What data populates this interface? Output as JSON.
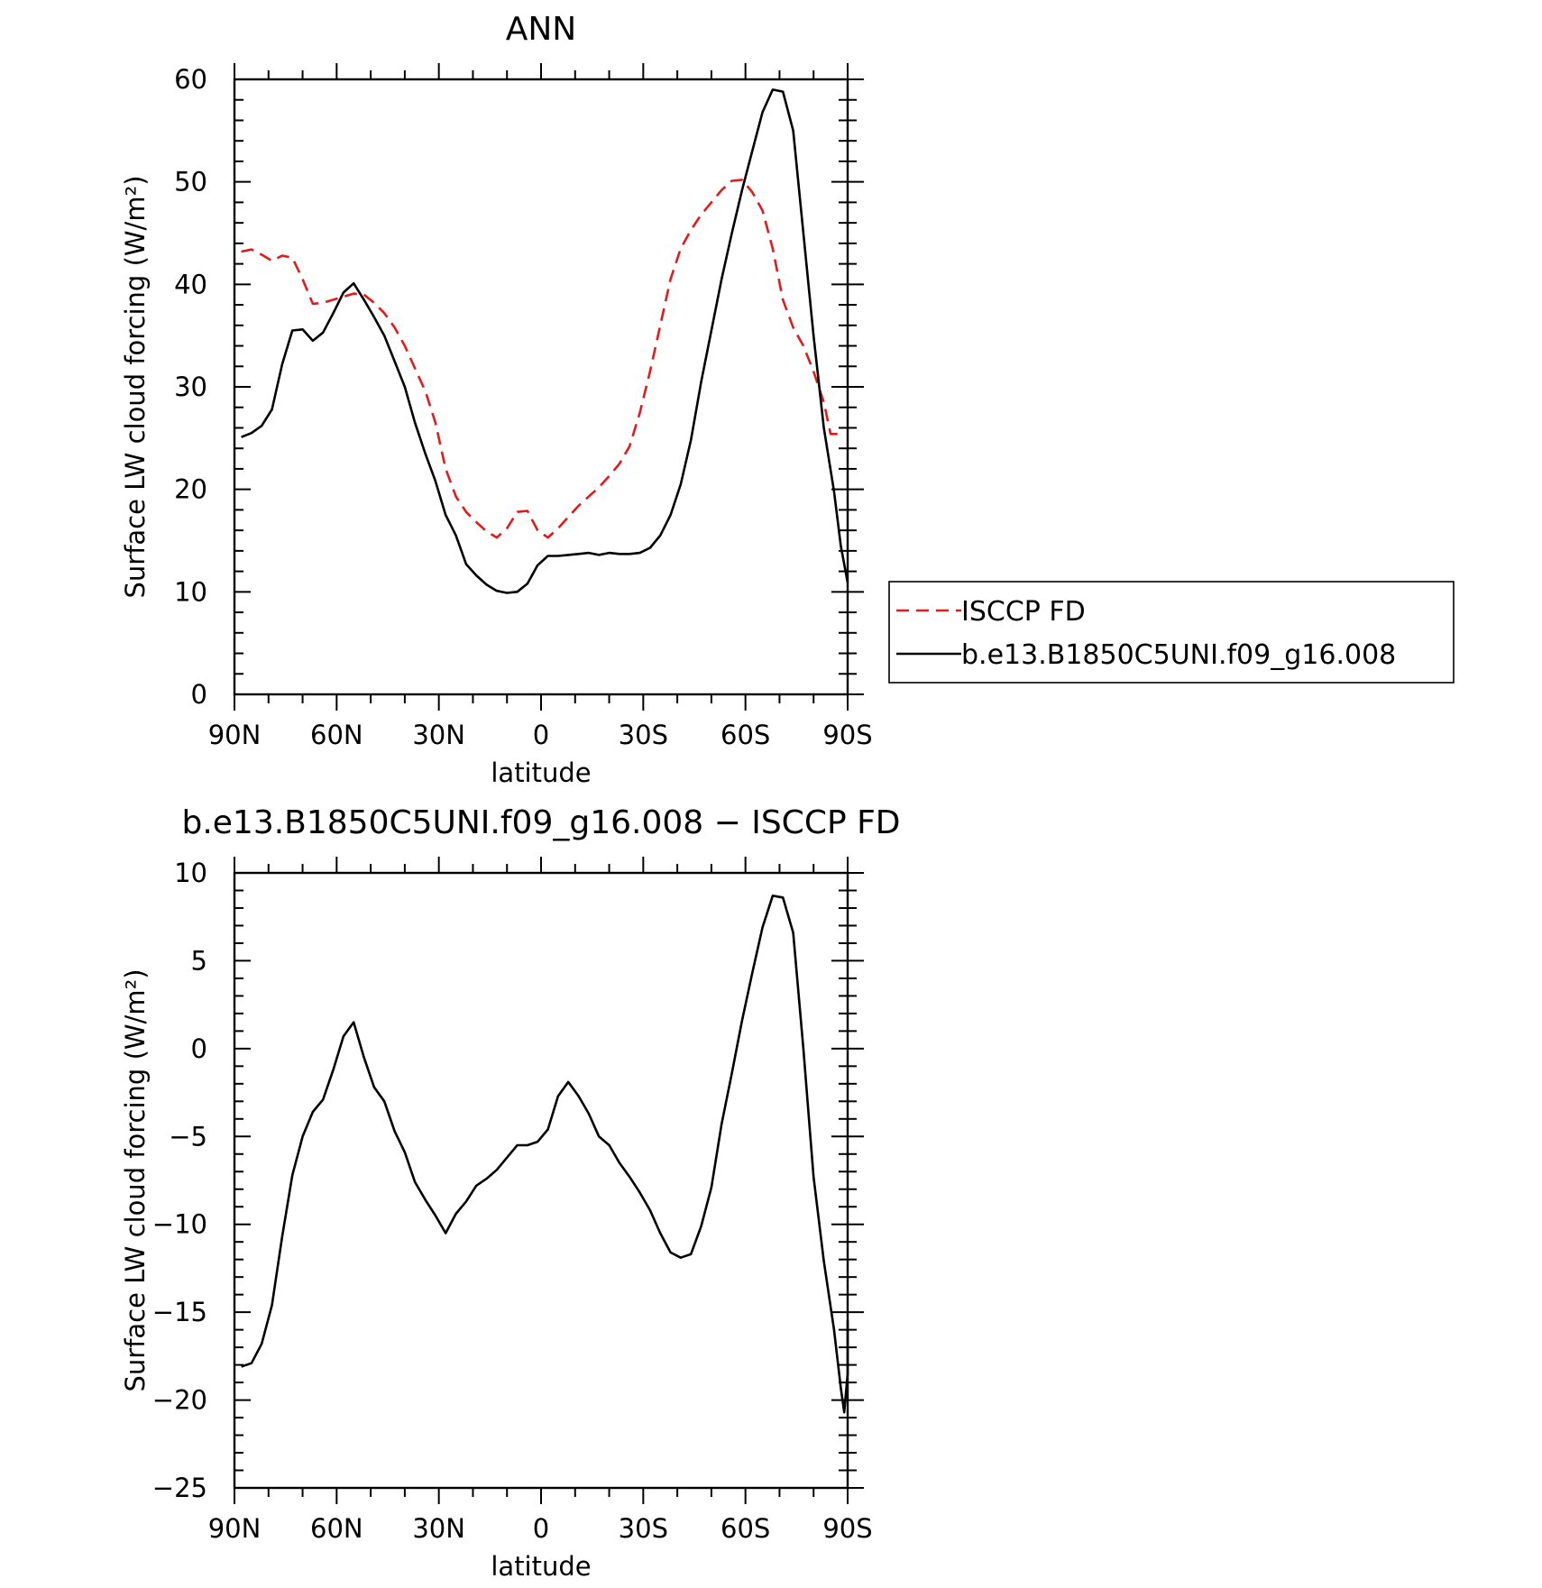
{
  "chart_data": [
    {
      "type": "line",
      "title": "ANN",
      "xlabel": "latitude",
      "ylabel": "Surface LW cloud forcing (W/m²)",
      "xlim": [
        90,
        -90
      ],
      "ylim": [
        0,
        60
      ],
      "x_ticks": [
        90,
        60,
        30,
        0,
        -30,
        -60,
        -90
      ],
      "x_tick_labels": [
        "90N",
        "60N",
        "30N",
        "0",
        "30S",
        "60S",
        "90S"
      ],
      "y_ticks": [
        0,
        10,
        20,
        30,
        40,
        50,
        60
      ],
      "y_tick_labels": [
        "0",
        "10",
        "20",
        "30",
        "40",
        "50",
        "60"
      ],
      "legend": "right",
      "grid": false,
      "series": [
        {
          "name": "ISCCP FD",
          "color": "#e31a1c",
          "dash": "dashed",
          "points": [
            [
              88,
              43.2
            ],
            [
              85,
              43.4
            ],
            [
              82,
              42.9
            ],
            [
              79,
              42.3
            ],
            [
              76,
              42.8
            ],
            [
              73,
              42.6
            ],
            [
              70,
              40.5
            ],
            [
              67,
              38.1
            ],
            [
              64,
              38.2
            ],
            [
              61,
              38.5
            ],
            [
              58,
              38.8
            ],
            [
              55,
              39.1
            ],
            [
              52,
              39.0
            ],
            [
              49,
              38.2
            ],
            [
              46,
              37.2
            ],
            [
              43,
              35.8
            ],
            [
              40,
              34.0
            ],
            [
              37,
              31.8
            ],
            [
              34,
              29.6
            ],
            [
              31,
              26.5
            ],
            [
              28,
              22.0
            ],
            [
              25,
              19.3
            ],
            [
              22,
              17.8
            ],
            [
              19,
              16.8
            ],
            [
              16,
              15.9
            ],
            [
              13,
              15.3
            ],
            [
              10,
              16.2
            ],
            [
              7,
              17.8
            ],
            [
              4,
              17.9
            ],
            [
              1,
              16.0
            ],
            [
              -2,
              15.3
            ],
            [
              -5,
              16.2
            ],
            [
              -8,
              17.3
            ],
            [
              -11,
              18.4
            ],
            [
              -14,
              19.3
            ],
            [
              -17,
              20.2
            ],
            [
              -20,
              21.3
            ],
            [
              -23,
              22.5
            ],
            [
              -26,
              24.2
            ],
            [
              -29,
              27.5
            ],
            [
              -32,
              31.5
            ],
            [
              -35,
              36.0
            ],
            [
              -38,
              40.5
            ],
            [
              -41,
              43.5
            ],
            [
              -44,
              45.3
            ],
            [
              -47,
              46.8
            ],
            [
              -50,
              48.0
            ],
            [
              -53,
              49.2
            ],
            [
              -56,
              50.1
            ],
            [
              -59,
              50.2
            ],
            [
              -62,
              49.0
            ],
            [
              -65,
              47.2
            ],
            [
              -68,
              43.5
            ],
            [
              -71,
              38.5
            ],
            [
              -74,
              35.8
            ],
            [
              -77,
              34.0
            ],
            [
              -80,
              31.5
            ],
            [
              -83,
              28.5
            ],
            [
              -85,
              25.4
            ],
            [
              -88,
              25.4
            ]
          ]
        },
        {
          "name": "b.e13.B1850C5UNI.f09_g16.008",
          "color": "#000000",
          "dash": "solid",
          "points": [
            [
              88,
              25.1
            ],
            [
              85,
              25.5
            ],
            [
              82,
              26.2
            ],
            [
              79,
              27.8
            ],
            [
              76,
              32.2
            ],
            [
              73,
              35.5
            ],
            [
              70,
              35.6
            ],
            [
              67,
              34.5
            ],
            [
              64,
              35.3
            ],
            [
              61,
              37.2
            ],
            [
              58,
              39.2
            ],
            [
              55,
              40.1
            ],
            [
              52,
              38.5
            ],
            [
              49,
              36.8
            ],
            [
              46,
              35.0
            ],
            [
              43,
              32.5
            ],
            [
              40,
              30.0
            ],
            [
              37,
              26.5
            ],
            [
              34,
              23.5
            ],
            [
              31,
              20.8
            ],
            [
              28,
              17.5
            ],
            [
              25,
              15.5
            ],
            [
              22,
              12.7
            ],
            [
              19,
              11.6
            ],
            [
              16,
              10.7
            ],
            [
              13,
              10.1
            ],
            [
              10,
              9.9
            ],
            [
              7,
              10.0
            ],
            [
              4,
              10.8
            ],
            [
              1,
              12.6
            ],
            [
              -2,
              13.5
            ],
            [
              -5,
              13.5
            ],
            [
              -8,
              13.6
            ],
            [
              -11,
              13.7
            ],
            [
              -14,
              13.8
            ],
            [
              -17,
              13.6
            ],
            [
              -20,
              13.8
            ],
            [
              -23,
              13.7
            ],
            [
              -26,
              13.7
            ],
            [
              -29,
              13.8
            ],
            [
              -32,
              14.3
            ],
            [
              -35,
              15.5
            ],
            [
              -38,
              17.5
            ],
            [
              -41,
              20.5
            ],
            [
              -44,
              24.8
            ],
            [
              -47,
              30.5
            ],
            [
              -50,
              35.5
            ],
            [
              -53,
              40.5
            ],
            [
              -56,
              45.0
            ],
            [
              -59,
              49.2
            ],
            [
              -62,
              53.0
            ],
            [
              -65,
              56.8
            ],
            [
              -68,
              59.0
            ],
            [
              -71,
              58.8
            ],
            [
              -74,
              55.0
            ],
            [
              -77,
              45.0
            ],
            [
              -80,
              35.0
            ],
            [
              -83,
              26.0
            ],
            [
              -86,
              19.8
            ],
            [
              -88,
              14.5
            ],
            [
              -90,
              10.9
            ]
          ]
        }
      ]
    },
    {
      "type": "line",
      "title": "b.e13.B1850C5UNI.f09_g16.008 − ISCCP FD",
      "xlabel": "latitude",
      "ylabel": "Surface LW cloud forcing (W/m²)",
      "xlim": [
        90,
        -90
      ],
      "ylim": [
        -25,
        10
      ],
      "x_ticks": [
        90,
        60,
        30,
        0,
        -30,
        -60,
        -90
      ],
      "x_tick_labels": [
        "90N",
        "60N",
        "30N",
        "0",
        "30S",
        "60S",
        "90S"
      ],
      "y_ticks": [
        10,
        5,
        0,
        -5,
        -10,
        -15,
        -20,
        -25
      ],
      "y_tick_labels": [
        "10",
        "5",
        "0",
        "−5",
        "−10",
        "−15",
        "−20",
        "−25"
      ],
      "grid": false,
      "series": [
        {
          "color": "#000000",
          "dash": "solid",
          "points": [
            [
              88,
              -18.1
            ],
            [
              85,
              -17.9
            ],
            [
              82,
              -16.8
            ],
            [
              79,
              -14.6
            ],
            [
              76,
              -10.7
            ],
            [
              73,
              -7.2
            ],
            [
              70,
              -5.0
            ],
            [
              67,
              -3.6
            ],
            [
              64,
              -2.9
            ],
            [
              61,
              -1.2
            ],
            [
              58,
              0.7
            ],
            [
              55,
              1.5
            ],
            [
              52,
              -0.5
            ],
            [
              49,
              -2.2
            ],
            [
              46,
              -3.0
            ],
            [
              43,
              -4.7
            ],
            [
              40,
              -5.9
            ],
            [
              37,
              -7.6
            ],
            [
              34,
              -8.6
            ],
            [
              31,
              -9.5
            ],
            [
              28,
              -10.5
            ],
            [
              25,
              -9.4
            ],
            [
              22,
              -8.7
            ],
            [
              19,
              -7.8
            ],
            [
              16,
              -7.4
            ],
            [
              13,
              -6.9
            ],
            [
              10,
              -6.2
            ],
            [
              7,
              -5.5
            ],
            [
              4,
              -5.5
            ],
            [
              1,
              -5.3
            ],
            [
              -2,
              -4.6
            ],
            [
              -5,
              -2.7
            ],
            [
              -8,
              -1.9
            ],
            [
              -11,
              -2.7
            ],
            [
              -14,
              -3.7
            ],
            [
              -17,
              -5.0
            ],
            [
              -20,
              -5.5
            ],
            [
              -23,
              -6.5
            ],
            [
              -26,
              -7.3
            ],
            [
              -29,
              -8.2
            ],
            [
              -32,
              -9.2
            ],
            [
              -35,
              -10.5
            ],
            [
              -38,
              -11.6
            ],
            [
              -41,
              -11.9
            ],
            [
              -44,
              -11.7
            ],
            [
              -47,
              -10.1
            ],
            [
              -50,
              -7.9
            ],
            [
              -53,
              -4.3
            ],
            [
              -56,
              -1.4
            ],
            [
              -59,
              1.6
            ],
            [
              -62,
              4.3
            ],
            [
              -65,
              6.9
            ],
            [
              -68,
              8.7
            ],
            [
              -71,
              8.6
            ],
            [
              -74,
              6.6
            ],
            [
              -77,
              0.0
            ],
            [
              -80,
              -7.3
            ],
            [
              -83,
              -12.1
            ],
            [
              -86,
              -16.0
            ],
            [
              -88,
              -19.3
            ],
            [
              -89,
              -20.7
            ],
            [
              -90,
              -18.5
            ],
            [
              -90,
              -15.5
            ],
            [
              -90,
              -16.2
            ]
          ]
        }
      ]
    }
  ]
}
